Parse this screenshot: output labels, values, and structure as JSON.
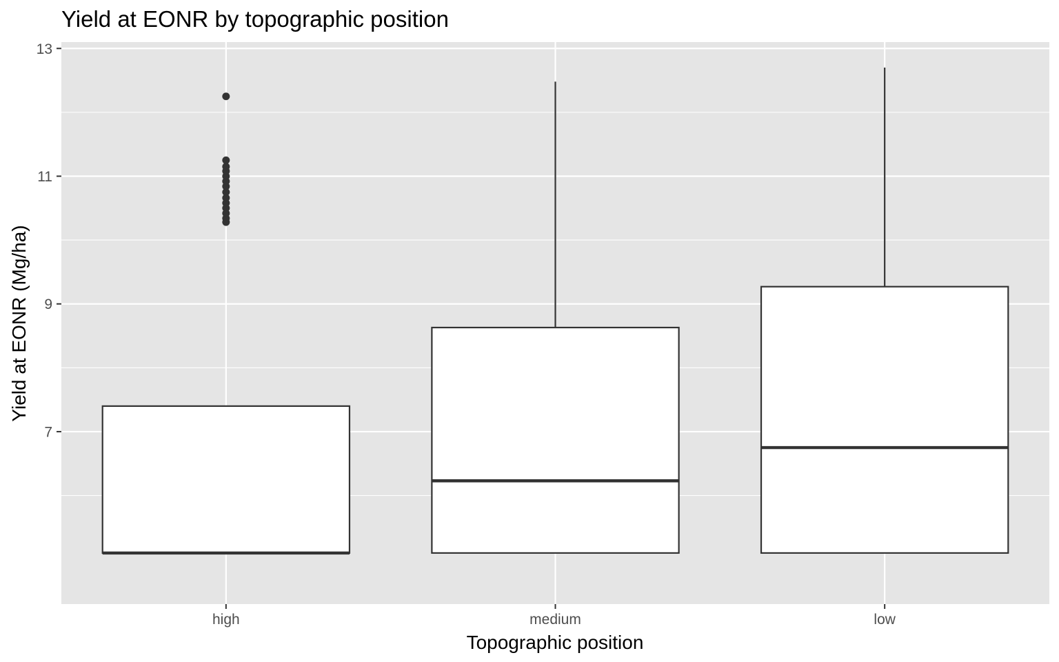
{
  "chart_data": {
    "type": "box",
    "title": "Yield at EONR by topographic position",
    "xlabel": "Topographic position",
    "ylabel": "Yield at EONR (Mg/ha)",
    "ylim": [
      4.3,
      13.1
    ],
    "yticks": [
      7,
      9,
      11,
      13
    ],
    "y_minor_ticks": [
      6,
      8,
      10,
      12
    ],
    "grid": true,
    "categories": [
      "high",
      "medium",
      "low"
    ],
    "boxes": [
      {
        "category": "high",
        "min": 5.1,
        "q1": 5.1,
        "median": 5.1,
        "q3": 7.4,
        "max": 7.4,
        "outliers": [
          10.28,
          10.34,
          10.42,
          10.5,
          10.58,
          10.66,
          10.75,
          10.84,
          10.92,
          11.0,
          11.08,
          11.15,
          11.25,
          12.25
        ]
      },
      {
        "category": "medium",
        "min": 5.1,
        "q1": 5.1,
        "median": 6.23,
        "q3": 8.63,
        "max": 12.48,
        "outliers": []
      },
      {
        "category": "low",
        "min": 5.1,
        "q1": 5.1,
        "median": 6.75,
        "q3": 9.27,
        "max": 12.7,
        "outliers": []
      }
    ],
    "colors": {
      "panel": "#e5e5e5",
      "grid": "#ffffff",
      "box_fill": "#ffffff",
      "stroke": "#333333",
      "tick_text": "#4d4d4d"
    }
  }
}
